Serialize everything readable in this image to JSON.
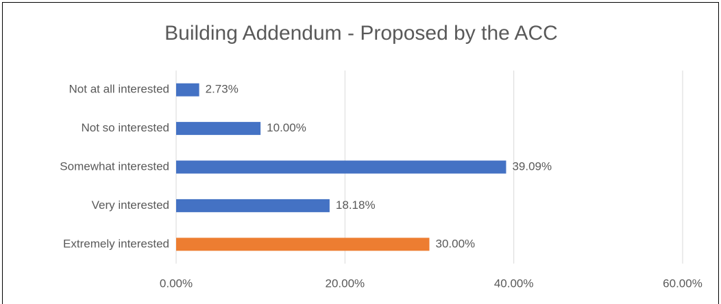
{
  "chart_data": {
    "type": "hbar",
    "title": "Building Addendum - Proposed by the ACC",
    "categories": [
      "Not at all interested",
      "Not so interested",
      "Somewhat interested",
      "Very interested",
      "Extremely interested"
    ],
    "values": [
      2.73,
      10,
      39.09,
      18.18,
      30
    ],
    "value_labels": [
      "2.73%",
      "10.00%",
      "39.09%",
      "18.18%",
      "30.00%"
    ],
    "colors": [
      "#4472c4",
      "#4472c4",
      "#4472c4",
      "#4472c4",
      "#ed7d31"
    ],
    "xlim": [
      0,
      60
    ],
    "xticks": [
      {
        "value": 0,
        "label": "0.00%"
      },
      {
        "value": 20,
        "label": "20.00%"
      },
      {
        "value": 40,
        "label": "40.00%"
      },
      {
        "value": 60,
        "label": "60.00%"
      }
    ],
    "grid": true
  }
}
